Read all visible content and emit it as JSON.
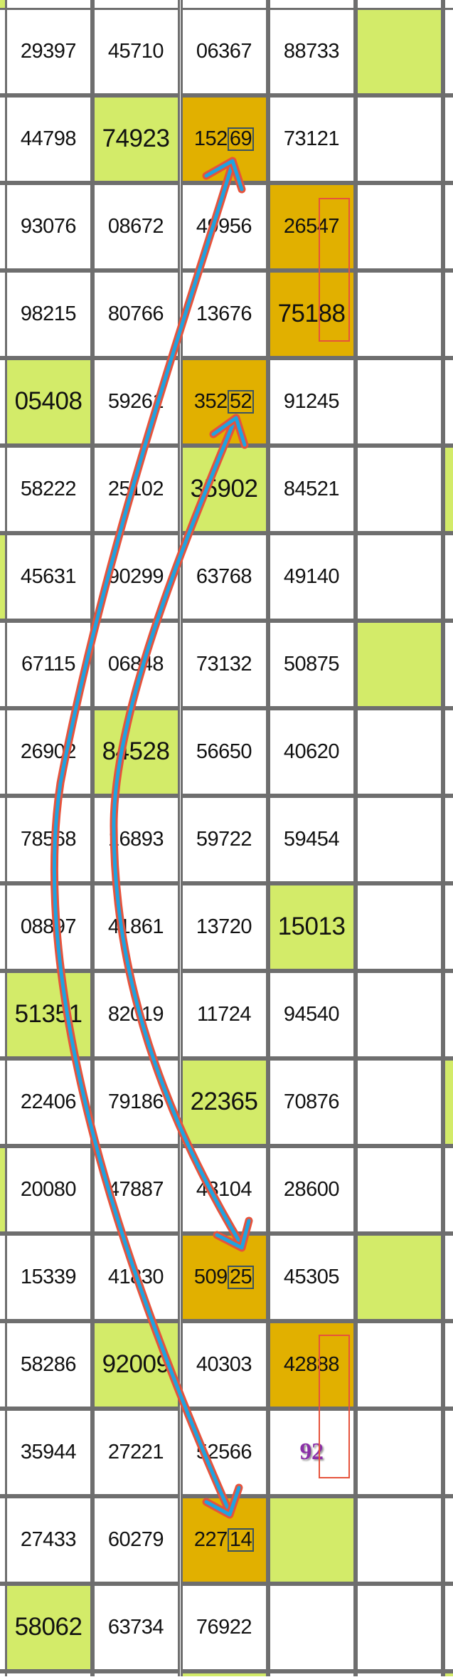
{
  "colors": {
    "green": "#d3eb69",
    "orange": "#e1b000",
    "grid": "#6e6e6e",
    "arrow": "#1fa3e0",
    "arrow_outline": "#e6533c",
    "mark": "#8a2fa8"
  },
  "rows": [
    [
      {
        "v": "29397"
      },
      {
        "v": "45710"
      },
      {
        "v": "06367"
      },
      {
        "v": "88733"
      },
      {
        "v": "",
        "bg": "g"
      }
    ],
    [
      {
        "v": "44798"
      },
      {
        "v": "74923",
        "bg": "g",
        "big": true
      },
      {
        "v": "152",
        "box": "69",
        "bg": "o"
      },
      {
        "v": "73121"
      },
      {
        "v": ""
      }
    ],
    [
      {
        "v": "93076"
      },
      {
        "v": "08672"
      },
      {
        "v": "49956"
      },
      {
        "v": "26547",
        "bg": "o"
      },
      {
        "v": ""
      }
    ],
    [
      {
        "v": "98215"
      },
      {
        "v": "80766"
      },
      {
        "v": "13676"
      },
      {
        "v": "75188",
        "bg": "o",
        "big": true
      },
      {
        "v": ""
      }
    ],
    [
      {
        "v": "05408",
        "bg": "g",
        "big": true
      },
      {
        "v": "59261"
      },
      {
        "v": "352",
        "box": "52",
        "bg": "o"
      },
      {
        "v": "91245"
      },
      {
        "v": ""
      }
    ],
    [
      {
        "v": "58222"
      },
      {
        "v": "25102"
      },
      {
        "v": "35902",
        "bg": "g",
        "big": true
      },
      {
        "v": "84521"
      },
      {
        "v": ""
      }
    ],
    [
      {
        "v": "45631"
      },
      {
        "v": "90299"
      },
      {
        "v": "63768"
      },
      {
        "v": "49140"
      },
      {
        "v": ""
      }
    ],
    [
      {
        "v": "67115"
      },
      {
        "v": "06848"
      },
      {
        "v": "73132"
      },
      {
        "v": "50875"
      },
      {
        "v": "",
        "bg": "g"
      }
    ],
    [
      {
        "v": "26902"
      },
      {
        "v": "84528",
        "bg": "g",
        "big": true
      },
      {
        "v": "56650"
      },
      {
        "v": "40620"
      },
      {
        "v": ""
      }
    ],
    [
      {
        "v": "78568"
      },
      {
        "v": "16893"
      },
      {
        "v": "59722"
      },
      {
        "v": "59454"
      },
      {
        "v": ""
      }
    ],
    [
      {
        "v": "08897"
      },
      {
        "v": "41861"
      },
      {
        "v": "13720"
      },
      {
        "v": "15013",
        "bg": "g",
        "big": true
      },
      {
        "v": ""
      }
    ],
    [
      {
        "v": "51351",
        "bg": "g",
        "big": true
      },
      {
        "v": "82019"
      },
      {
        "v": "11724"
      },
      {
        "v": "94540"
      },
      {
        "v": ""
      }
    ],
    [
      {
        "v": "22406"
      },
      {
        "v": "79186"
      },
      {
        "v": "22365",
        "bg": "g",
        "big": true
      },
      {
        "v": "70876"
      },
      {
        "v": ""
      }
    ],
    [
      {
        "v": "20080"
      },
      {
        "v": "47887"
      },
      {
        "v": "43104"
      },
      {
        "v": "28600"
      },
      {
        "v": ""
      }
    ],
    [
      {
        "v": "15339"
      },
      {
        "v": "41830"
      },
      {
        "v": "509",
        "box": "25",
        "bg": "o"
      },
      {
        "v": "45305"
      },
      {
        "v": "",
        "bg": "g"
      }
    ],
    [
      {
        "v": "58286"
      },
      {
        "v": "92009",
        "bg": "g",
        "big": true
      },
      {
        "v": "40303"
      },
      {
        "v": "42888",
        "bg": "o"
      },
      {
        "v": ""
      }
    ],
    [
      {
        "v": "35944"
      },
      {
        "v": "27221"
      },
      {
        "v": "52566"
      },
      {
        "v": "92",
        "mark": true
      },
      {
        "v": ""
      }
    ],
    [
      {
        "v": "27433"
      },
      {
        "v": "60279"
      },
      {
        "v": "227",
        "box": "14",
        "bg": "o"
      },
      {
        "v": "",
        "bg": "g"
      },
      {
        "v": ""
      }
    ],
    [
      {
        "v": "58062",
        "bg": "g",
        "big": true
      },
      {
        "v": "63734"
      },
      {
        "v": "76922"
      },
      {
        "v": ""
      },
      {
        "v": ""
      }
    ]
  ],
  "edge_fills": {
    "left_green_rows": [
      -1,
      6,
      13
    ],
    "right_green_rows": [
      5,
      12,
      19
    ],
    "bottom_green_cols": [
      2
    ]
  }
}
